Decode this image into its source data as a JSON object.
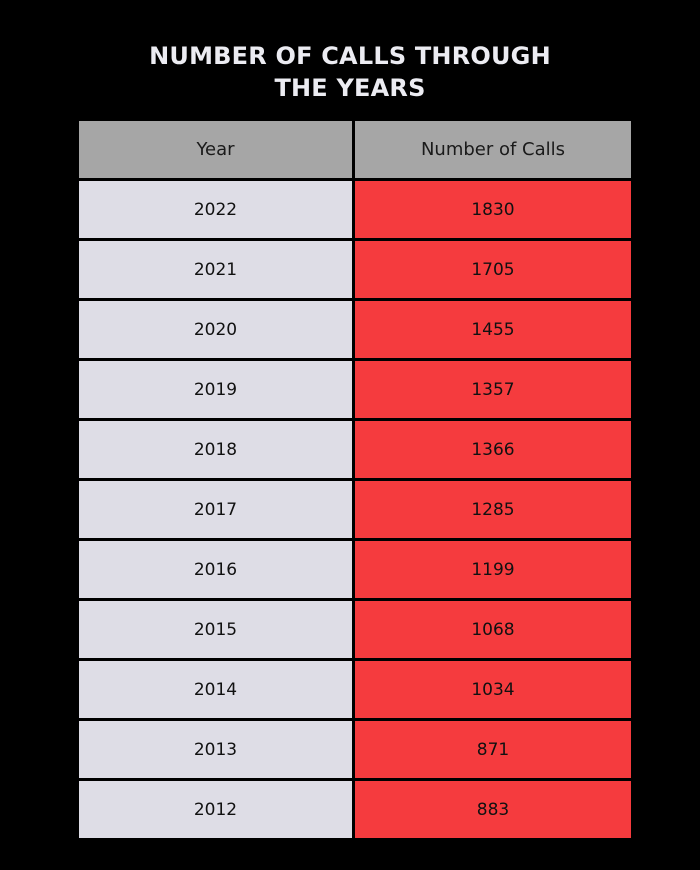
{
  "title_lines": [
    "NUMBER OF CALLS THROUGH",
    "THE YEARS"
  ],
  "colors": {
    "background": "#000000",
    "header_fill": "#a6a6a6",
    "year_fill": "#dedde6",
    "calls_fill": "#f53b3e"
  },
  "chart_data": {
    "type": "table",
    "columns": [
      "Year",
      "Number of Calls"
    ],
    "rows": [
      [
        "2022",
        "1830"
      ],
      [
        "2021",
        "1705"
      ],
      [
        "2020",
        "1455"
      ],
      [
        "2019",
        "1357"
      ],
      [
        "2018",
        "1366"
      ],
      [
        "2017",
        "1285"
      ],
      [
        "2016",
        "1199"
      ],
      [
        "2015",
        "1068"
      ],
      [
        "2014",
        "1034"
      ],
      [
        "2013",
        "871"
      ],
      [
        "2012",
        "883"
      ]
    ]
  }
}
